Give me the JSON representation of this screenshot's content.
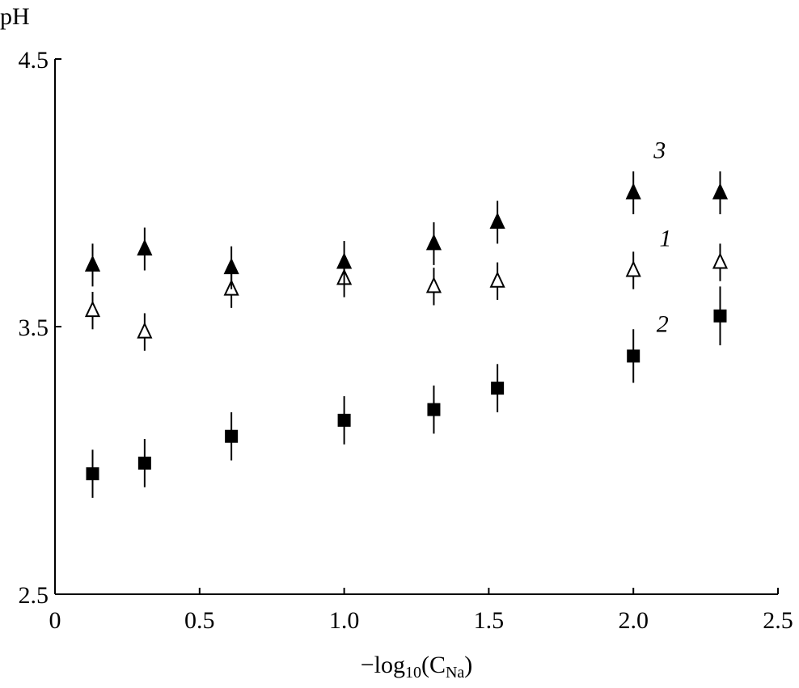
{
  "chart_data": {
    "type": "scatter",
    "title": "",
    "xlabel": {
      "main": "−log",
      "sub": "10",
      "open": "(C",
      "sub2": "Na",
      "close": ")"
    },
    "ylabel": "pH",
    "xlim": [
      0,
      2.5
    ],
    "ylim": [
      2.5,
      4.5
    ],
    "xticks": [
      "0",
      "0.5",
      "1.0",
      "1.5",
      "2.0",
      "2.5"
    ],
    "xtick_values": [
      0,
      0.5,
      1.0,
      1.5,
      2.0,
      2.5
    ],
    "yticks": [
      "2.5",
      "3.5",
      "4.5"
    ],
    "ytick_values": [
      2.5,
      3.5,
      4.5
    ],
    "grid": false,
    "x": [
      0.13,
      0.31,
      0.61,
      1.0,
      1.31,
      1.53,
      2.0,
      2.3
    ],
    "series": [
      {
        "name": "1",
        "marker": "open-triangle",
        "values": [
          3.56,
          3.48,
          3.64,
          3.68,
          3.65,
          3.67,
          3.71,
          3.74
        ],
        "error": [
          0.07,
          0.07,
          0.07,
          0.07,
          0.07,
          0.07,
          0.07,
          0.07
        ]
      },
      {
        "name": "2",
        "marker": "filled-square",
        "values": [
          2.95,
          2.99,
          3.09,
          3.15,
          3.19,
          3.27,
          3.39,
          3.54
        ],
        "error": [
          0.09,
          0.09,
          0.09,
          0.09,
          0.09,
          0.09,
          0.1,
          0.11
        ]
      },
      {
        "name": "3",
        "marker": "filled-triangle",
        "values": [
          3.73,
          3.79,
          3.72,
          3.74,
          3.81,
          3.89,
          4.0,
          4.0
        ],
        "error": [
          0.08,
          0.08,
          0.08,
          0.08,
          0.08,
          0.08,
          0.08,
          0.08
        ]
      }
    ],
    "annotations": [
      {
        "text": "3",
        "x": 2.07,
        "y": 4.13
      },
      {
        "text": "1",
        "x": 2.09,
        "y": 3.8
      },
      {
        "text": "2",
        "x": 2.08,
        "y": 3.48
      }
    ]
  }
}
